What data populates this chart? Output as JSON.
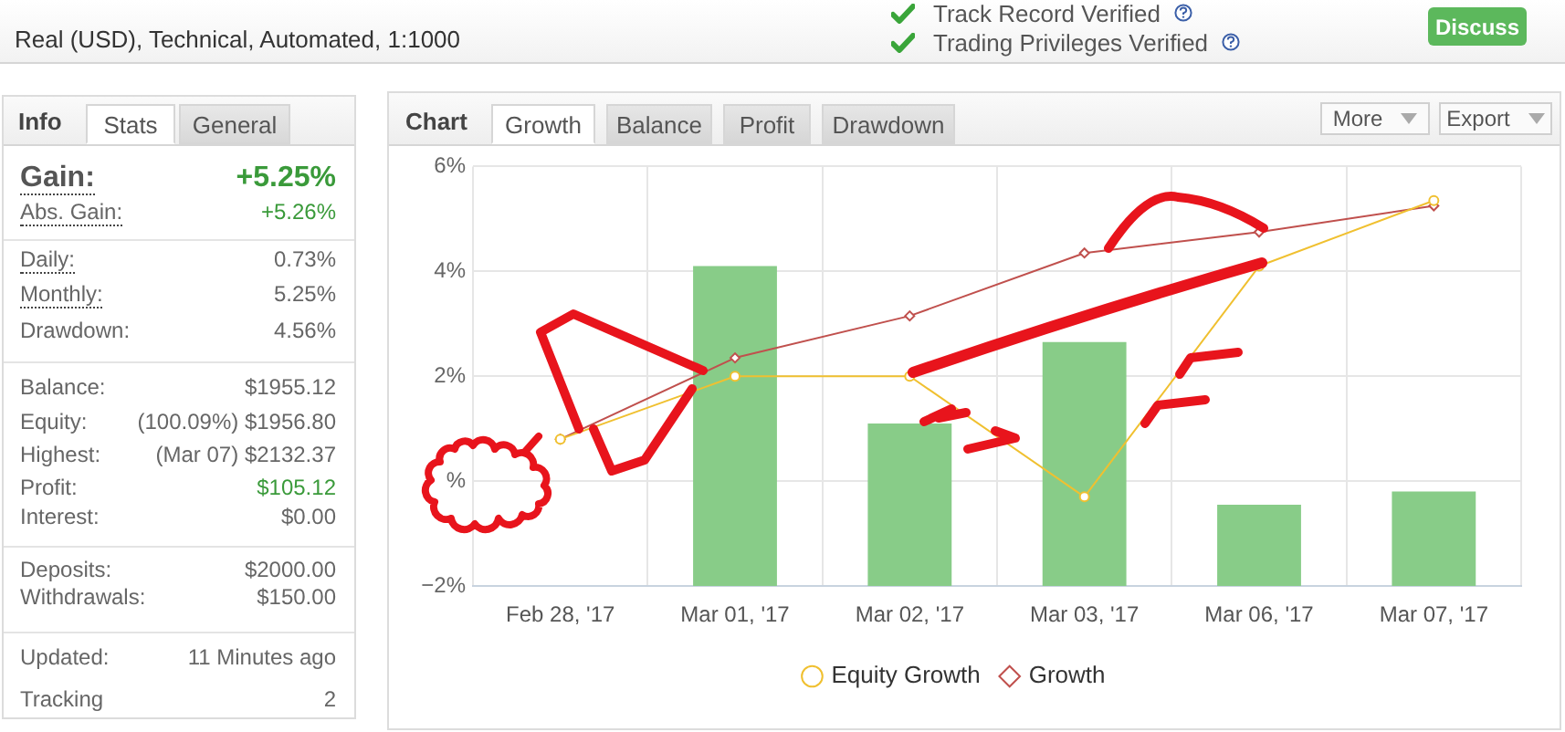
{
  "chart_data": [
    {
      "type": "other",
      "subtitle": "Real (USD), Technical, Automated, 1:1000",
      "annotations": [
        "Track Record Verified",
        "Trading Privileges Verified",
        "Discuss"
      ]
    },
    {
      "type": "other",
      "title": "Info",
      "annotations": [
        "Stats",
        "General",
        "Gain:",
        "+5.25%",
        "Abs. Gain:",
        "+5.26%",
        "Daily:",
        "0.73%",
        "Monthly:",
        "5.25%",
        "Drawdown:",
        "4.56%",
        "Balance:",
        "$1955.12",
        "Equity:",
        "(100.09%) $1956.80",
        "Highest:",
        "(Mar 07) $2132.37",
        "Profit:",
        "$105.12",
        "Interest:",
        "$0.00",
        "Deposits:",
        "$2000.00",
        "Withdrawals:",
        "$150.00",
        "Updated:",
        "11 Minutes ago",
        "Tracking",
        "2"
      ]
    },
    {
      "type": "bar",
      "title": "Chart",
      "annotations": [
        "Growth",
        "Balance",
        "Profit",
        "Drawdown",
        "More",
        "Export"
      ],
      "categories": [
        "Feb 28, '17",
        "Mar 01, '17",
        "Mar 02, '17",
        "Mar 03, '17",
        "Mar 06, '17",
        "Mar 07, '17"
      ],
      "series": [
        {
          "color": "#88cc88",
          "base": [
            null,
            -2,
            -2,
            -2,
            -2,
            -2
          ],
          "values": [
            null,
            6.1,
            3.1,
            4.65,
            1.55,
            1.8
          ]
        },
        {
          "name": "Equity Growth",
          "type": "line",
          "color": "#f0c030",
          "marker": "circle",
          "values": [
            0.8,
            2.0,
            2.0,
            -0.3,
            4.1,
            5.35
          ]
        },
        {
          "name": "Growth",
          "type": "line",
          "color": "#c0504d",
          "marker": "diamond",
          "values": [
            0.8,
            2.35,
            3.15,
            4.35,
            4.75,
            5.25
          ]
        }
      ],
      "ylim": [
        -2,
        6
      ],
      "yticks": [
        {
          "value": -2,
          "label": "−2%"
        },
        {
          "value": 0,
          "label": "%"
        },
        {
          "value": 2,
          "label": "2%"
        },
        {
          "value": 4,
          "label": "4%"
        },
        {
          "value": 6,
          "label": "6%"
        }
      ],
      "grid": true,
      "legend": "bottom"
    }
  ]
}
